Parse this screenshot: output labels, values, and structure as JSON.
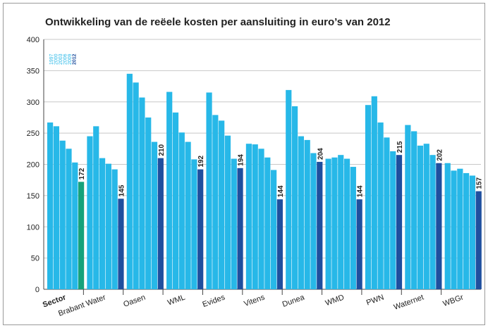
{
  "chart_data": {
    "type": "bar",
    "title": "Ontwikkeling van de reëele kosten per aansluiting in euro’s van 2012",
    "categories": [
      "Sector",
      "Brabant Water",
      "Oasen",
      "WML",
      "Evides",
      "Vitens",
      "Dunea",
      "WMD",
      "PWN",
      "Waternet",
      "WBGr"
    ],
    "series": [
      {
        "name": "1997",
        "color": "#27b8e8",
        "values": [
          267,
          245,
          345,
          316,
          315,
          233,
          319,
          209,
          295,
          263,
          202
        ]
      },
      {
        "name": "2000",
        "color": "#27b8e8",
        "values": [
          261,
          261,
          331,
          283,
          279,
          232,
          293,
          211,
          309,
          253,
          190
        ]
      },
      {
        "name": "2003",
        "color": "#27b8e8",
        "values": [
          238,
          210,
          307,
          251,
          270,
          225,
          245,
          215,
          267,
          230,
          193
        ]
      },
      {
        "name": "2006",
        "color": "#27b8e8",
        "values": [
          225,
          201,
          275,
          236,
          246,
          211,
          239,
          209,
          243,
          233,
          186
        ]
      },
      {
        "name": "2009",
        "color": "#27b8e8",
        "values": [
          203,
          192,
          236,
          208,
          209,
          191,
          218,
          196,
          221,
          215,
          182
        ]
      },
      {
        "name": "2012",
        "color": "#1f4f9e",
        "values": [
          172,
          145,
          210,
          192,
          194,
          144,
          204,
          144,
          215,
          202,
          157
        ],
        "colors": [
          "#16a27b",
          "#1f4f9e",
          "#1f4f9e",
          "#1f4f9e",
          "#1f4f9e",
          "#1f4f9e",
          "#1f4f9e",
          "#1f4f9e",
          "#1f4f9e",
          "#1f4f9e",
          "#1f4f9e"
        ],
        "show_value_labels": true
      }
    ],
    "ylim": [
      0,
      400
    ],
    "yticks": [
      0,
      50,
      100,
      150,
      200,
      250,
      300,
      350,
      400
    ],
    "grid": true,
    "legend": "top-left"
  }
}
